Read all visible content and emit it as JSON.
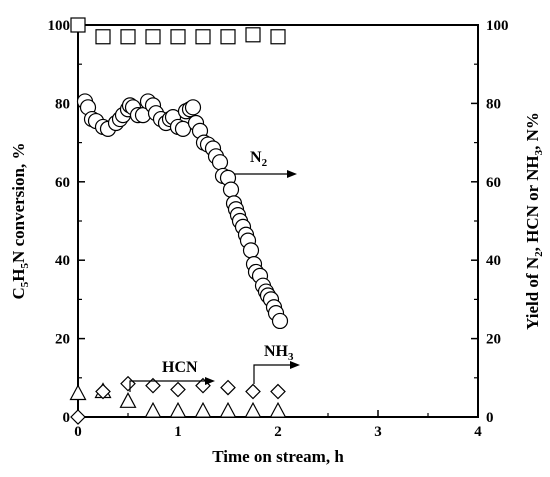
{
  "chart_data": {
    "type": "scatter",
    "xlabel": "Time on stream, h",
    "ylabel_left": {
      "main": "C",
      "s1": "5",
      "mid": "H",
      "s2": "5",
      "tail": "N conversion, %"
    },
    "ylabel_right": {
      "main": "Yield of N",
      "s1": "2",
      "mid": ", HCN or NH",
      "s2": "3",
      "tail": ", N%"
    },
    "xlim": [
      0,
      4
    ],
    "ylim": [
      0,
      100
    ],
    "x_ticks": [
      "0",
      "1",
      "2",
      "3",
      "4"
    ],
    "y_ticks": [
      "0",
      "20",
      "40",
      "60",
      "80",
      "100"
    ],
    "series": [
      {
        "marker": "square",
        "axis": "left",
        "points": [
          [
            0,
            100
          ],
          [
            0.25,
            97
          ],
          [
            0.5,
            97
          ],
          [
            0.75,
            97
          ],
          [
            1.0,
            97
          ],
          [
            1.25,
            97
          ],
          [
            1.5,
            97
          ],
          [
            1.75,
            97.5
          ],
          [
            2.0,
            97
          ]
        ]
      },
      {
        "marker": "circle",
        "axis": "right",
        "points": [
          [
            0.07,
            80.5
          ],
          [
            0.1,
            79
          ],
          [
            0.14,
            76
          ],
          [
            0.18,
            75.5
          ],
          [
            0.25,
            74
          ],
          [
            0.3,
            73.5
          ],
          [
            0.38,
            75
          ],
          [
            0.42,
            76
          ],
          [
            0.45,
            77
          ],
          [
            0.5,
            78.5
          ],
          [
            0.52,
            79.5
          ],
          [
            0.55,
            79
          ],
          [
            0.6,
            77
          ],
          [
            0.65,
            77
          ],
          [
            0.7,
            80.5
          ],
          [
            0.75,
            79.5
          ],
          [
            0.78,
            77.5
          ],
          [
            0.83,
            76
          ],
          [
            0.88,
            75
          ],
          [
            0.92,
            76
          ],
          [
            0.95,
            76.5
          ],
          [
            1.0,
            74
          ],
          [
            1.05,
            73.5
          ],
          [
            1.08,
            78
          ],
          [
            1.12,
            78.5
          ],
          [
            1.15,
            79
          ],
          [
            1.18,
            75
          ],
          [
            1.22,
            73
          ],
          [
            1.26,
            70
          ],
          [
            1.3,
            69.5
          ],
          [
            1.35,
            68.5
          ],
          [
            1.38,
            66.5
          ],
          [
            1.42,
            65
          ],
          [
            1.45,
            61.5
          ],
          [
            1.5,
            61
          ],
          [
            1.53,
            58
          ],
          [
            1.56,
            54.5
          ],
          [
            1.58,
            53
          ],
          [
            1.6,
            51.5
          ],
          [
            1.62,
            50
          ],
          [
            1.65,
            48.5
          ],
          [
            1.68,
            46.5
          ],
          [
            1.7,
            45
          ],
          [
            1.73,
            42.5
          ],
          [
            1.76,
            39
          ],
          [
            1.78,
            37
          ],
          [
            1.82,
            36
          ],
          [
            1.85,
            33.5
          ],
          [
            1.88,
            32
          ],
          [
            1.9,
            31
          ],
          [
            1.93,
            30
          ],
          [
            1.96,
            28
          ],
          [
            1.98,
            26.5
          ],
          [
            2.02,
            24.5
          ]
        ]
      },
      {
        "marker": "triangle",
        "axis": "right",
        "points": [
          [
            0,
            6
          ],
          [
            0.25,
            6.5
          ],
          [
            0.5,
            4
          ],
          [
            0.75,
            1.5
          ],
          [
            1.0,
            1.5
          ],
          [
            1.25,
            1.5
          ],
          [
            1.5,
            1.5
          ],
          [
            1.75,
            1.5
          ],
          [
            2.0,
            1.5
          ]
        ]
      },
      {
        "marker": "diamond",
        "axis": "right",
        "points": [
          [
            0,
            0
          ],
          [
            0.25,
            6.5
          ],
          [
            0.5,
            8.5
          ],
          [
            0.75,
            8
          ],
          [
            1.0,
            7
          ],
          [
            1.25,
            8
          ],
          [
            1.5,
            7.5
          ],
          [
            1.75,
            6.5
          ],
          [
            2.0,
            6.5
          ]
        ]
      }
    ],
    "annotations": {
      "n2": {
        "main": "N",
        "sub": "2"
      },
      "hcn": {
        "main": "HCN"
      },
      "nh3": {
        "main": "NH",
        "sub": "3"
      }
    }
  }
}
